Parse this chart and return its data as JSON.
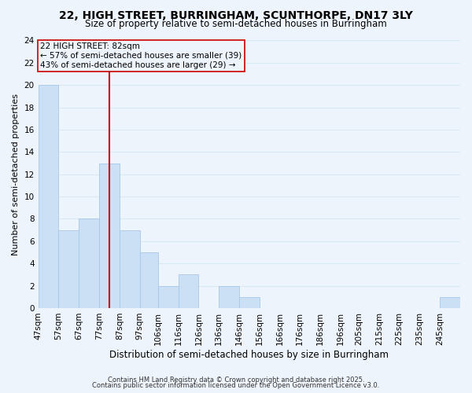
{
  "title": "22, HIGH STREET, BURRINGHAM, SCUNTHORPE, DN17 3LY",
  "subtitle": "Size of property relative to semi-detached houses in Burringham",
  "xlabel": "Distribution of semi-detached houses by size in Burringham",
  "ylabel": "Number of semi-detached properties",
  "bin_labels": [
    "47sqm",
    "57sqm",
    "67sqm",
    "77sqm",
    "87sqm",
    "97sqm",
    "106sqm",
    "116sqm",
    "126sqm",
    "136sqm",
    "146sqm",
    "156sqm",
    "166sqm",
    "176sqm",
    "186sqm",
    "196sqm",
    "205sqm",
    "215sqm",
    "225sqm",
    "235sqm",
    "245sqm"
  ],
  "bin_edges": [
    47,
    57,
    67,
    77,
    87,
    97,
    106,
    116,
    126,
    136,
    146,
    156,
    166,
    176,
    186,
    196,
    205,
    215,
    225,
    235,
    245
  ],
  "counts": [
    20,
    7,
    8,
    13,
    7,
    5,
    2,
    3,
    0,
    2,
    1,
    0,
    0,
    0,
    0,
    0,
    0,
    0,
    0,
    0,
    1
  ],
  "bar_color": "#cce0f5",
  "bar_edgecolor": "#a8c8e8",
  "grid_color": "#d8e8f4",
  "vline_x": 82,
  "vline_color": "#cc0000",
  "annotation_title": "22 HIGH STREET: 82sqm",
  "annotation_line1": "← 57% of semi-detached houses are smaller (39)",
  "annotation_line2": "43% of semi-detached houses are larger (29) →",
  "annotation_box_edgecolor": "#cc0000",
  "ylim": [
    0,
    24
  ],
  "yticks": [
    0,
    2,
    4,
    6,
    8,
    10,
    12,
    14,
    16,
    18,
    20,
    22,
    24
  ],
  "footer1": "Contains HM Land Registry data © Crown copyright and database right 2025.",
  "footer2": "Contains public sector information licensed under the Open Government Licence v3.0.",
  "background_color": "#eef4fb",
  "title_fontsize": 10,
  "subtitle_fontsize": 8.5,
  "xlabel_fontsize": 8.5,
  "ylabel_fontsize": 8,
  "tick_fontsize": 7.5,
  "footer_fontsize": 6,
  "annotation_fontsize": 7.5
}
